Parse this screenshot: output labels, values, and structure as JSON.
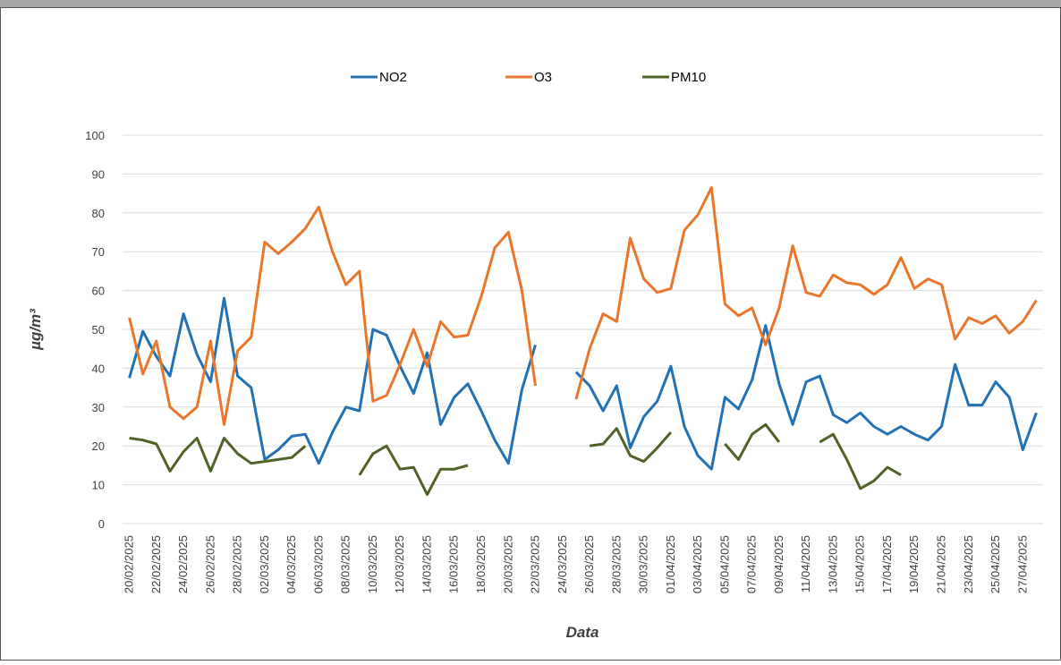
{
  "chart_data": {
    "type": "line",
    "legend_position": "top",
    "y_label": "µg/m³",
    "x_label": "Data",
    "categories": [
      "20/02/2025",
      null,
      "22/02/2025",
      null,
      "24/02/2025",
      null,
      "26/02/2025",
      null,
      "28/02/2025",
      null,
      "02/03/2025",
      null,
      "04/03/2025",
      null,
      "06/03/2025",
      null,
      "08/03/2025",
      null,
      "10/03/2025",
      null,
      "12/03/2025",
      null,
      "14/03/2025",
      null,
      "16/03/2025",
      null,
      "18/03/2025",
      null,
      "20/03/2025",
      null,
      "22/03/2025",
      null,
      "24/03/2025",
      null,
      "26/03/2025",
      null,
      "28/03/2025",
      null,
      "30/03/2025",
      null,
      "01/04/2025",
      null,
      "03/04/2025",
      null,
      "05/04/2025",
      null,
      "07/04/2025",
      null,
      "09/04/2025",
      null,
      "11/04/2025",
      null,
      "13/04/2025",
      null,
      "15/04/2025",
      null,
      "17/04/2025",
      null,
      "19/04/2025",
      null,
      "21/04/2025",
      null,
      "23/04/2025",
      null,
      "25/04/2025",
      null,
      "27/04/2025",
      null
    ],
    "series": [
      {
        "name": "NO2",
        "color": "#2271b3",
        "values": [
          37.5,
          49.5,
          43,
          38,
          54,
          43.5,
          36.5,
          58,
          38,
          35,
          16.5,
          19,
          22.5,
          23,
          15.5,
          23.5,
          30,
          29,
          50,
          48.5,
          40.5,
          33.5,
          44,
          25.5,
          32.5,
          36,
          29,
          21.5,
          15.5,
          34.5,
          46,
          null,
          null,
          39,
          35.5,
          29,
          35.5,
          19.5,
          27.5,
          31.5,
          40.5,
          25,
          17.5,
          14,
          32.5,
          29.5,
          37,
          51,
          36,
          25.5,
          36.5,
          38,
          28,
          26,
          28.5,
          25,
          23,
          25,
          23,
          21.5,
          25,
          41,
          30.5,
          30.5,
          36.5,
          32.5,
          19,
          28.5
        ]
      },
      {
        "name": "O3",
        "color": "#e8762c",
        "values": [
          53,
          38.5,
          47,
          30,
          27,
          30,
          47,
          25.5,
          44.5,
          48,
          72.5,
          69.5,
          72.5,
          76,
          81.5,
          70,
          61.5,
          65,
          31.5,
          33,
          41,
          50,
          40.5,
          52,
          48,
          48.5,
          58.5,
          71,
          75,
          60,
          35.5,
          null,
          null,
          32,
          45,
          54,
          52,
          73.5,
          63,
          59.5,
          60.5,
          75.5,
          79.5,
          86.5,
          56.5,
          53.5,
          55.5,
          46,
          55.5,
          71.5,
          59.5,
          58.5,
          64,
          62,
          61.5,
          59,
          61.5,
          68.5,
          60.5,
          63,
          61.5,
          47.5,
          53,
          51.5,
          53.5,
          49,
          52,
          57.5
        ]
      },
      {
        "name": "PM10",
        "color": "#4f6228",
        "values": [
          22,
          21.5,
          20.5,
          13.5,
          18.5,
          22,
          13.5,
          22,
          18,
          15.5,
          16,
          16.5,
          17,
          20,
          null,
          null,
          null,
          12.5,
          18,
          20,
          14,
          14.5,
          7.5,
          14,
          14,
          15,
          null,
          null,
          null,
          null,
          null,
          null,
          null,
          null,
          20,
          20.5,
          24.5,
          17.5,
          16,
          19.5,
          23.5,
          null,
          null,
          null,
          20.5,
          16.5,
          23,
          25.5,
          21,
          null,
          null,
          21,
          23,
          16.5,
          9,
          11,
          14.5,
          12.5,
          null,
          null,
          null,
          null,
          null,
          null,
          null,
          null,
          null,
          null
        ]
      }
    ],
    "ylim": [
      0,
      100
    ],
    "yticks": [
      0,
      10,
      20,
      30,
      40,
      50,
      60,
      70,
      80,
      90,
      100
    ],
    "grid": true
  }
}
